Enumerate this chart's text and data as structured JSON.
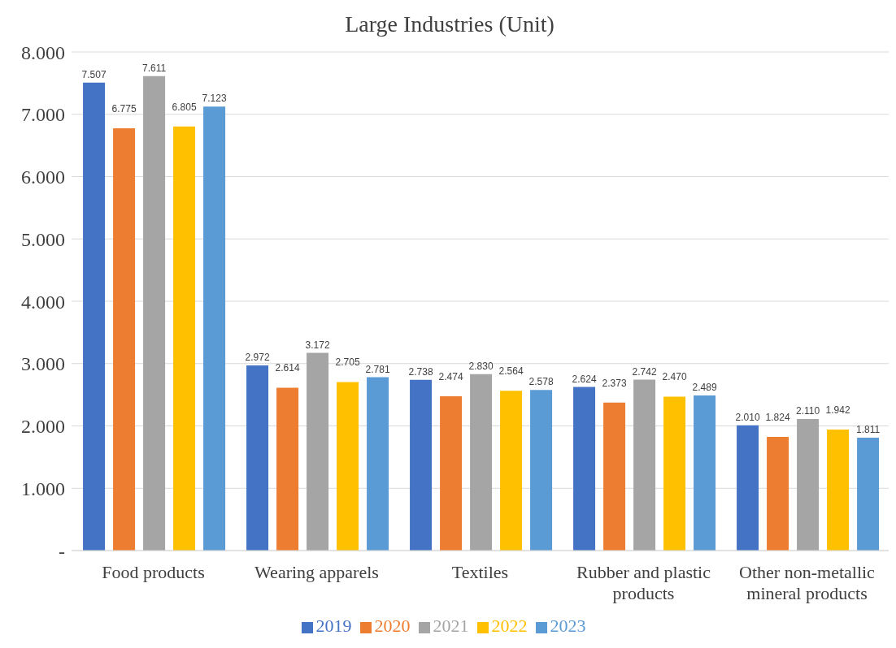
{
  "chart_data": {
    "type": "bar",
    "title": "Large Industries (Unit)",
    "categories": [
      "Food products",
      "Wearing apparels",
      "Textiles",
      "Rubber and plastic products",
      "Other non-metallic mineral products"
    ],
    "series": [
      {
        "name": "2019",
        "color": "#4472c4",
        "values": [
          7507,
          2972,
          2738,
          2624,
          2010
        ],
        "value_labels": [
          "7.507",
          "2.972",
          "2.738",
          "2.624",
          "2.010"
        ]
      },
      {
        "name": "2020",
        "color": "#ed7d31",
        "values": [
          6775,
          2614,
          2474,
          2373,
          1824
        ],
        "value_labels": [
          "6.775",
          "2.614",
          "2.474",
          "2.373",
          "1.824"
        ]
      },
      {
        "name": "2021",
        "color": "#a5a5a5",
        "values": [
          7611,
          3172,
          2830,
          2742,
          2110
        ],
        "value_labels": [
          "7.611",
          "3.172",
          "2.830",
          "2.742",
          "2.110"
        ]
      },
      {
        "name": "2022",
        "color": "#ffc000",
        "values": [
          6805,
          2705,
          2564,
          2470,
          1942
        ],
        "value_labels": [
          "6.805",
          "2.705",
          "2.564",
          "2.470",
          "1.942"
        ]
      },
      {
        "name": "2023",
        "color": "#5b9bd5",
        "values": [
          7123,
          2781,
          2578,
          2489,
          1811
        ],
        "value_labels": [
          "7.123",
          "2.781",
          "2.578",
          "2.489",
          "1.811"
        ]
      }
    ],
    "ylim": [
      0,
      8000
    ],
    "yticks": [
      {
        "value": 0,
        "label": "-"
      },
      {
        "value": 1000,
        "label": "1.000"
      },
      {
        "value": 2000,
        "label": "2.000"
      },
      {
        "value": 3000,
        "label": "3.000"
      },
      {
        "value": 4000,
        "label": "4.000"
      },
      {
        "value": 5000,
        "label": "5.000"
      },
      {
        "value": 6000,
        "label": "6.000"
      },
      {
        "value": 7000,
        "label": "7.000"
      },
      {
        "value": 8000,
        "label": "8.000"
      }
    ],
    "grid": "y",
    "legend": "bottom"
  }
}
